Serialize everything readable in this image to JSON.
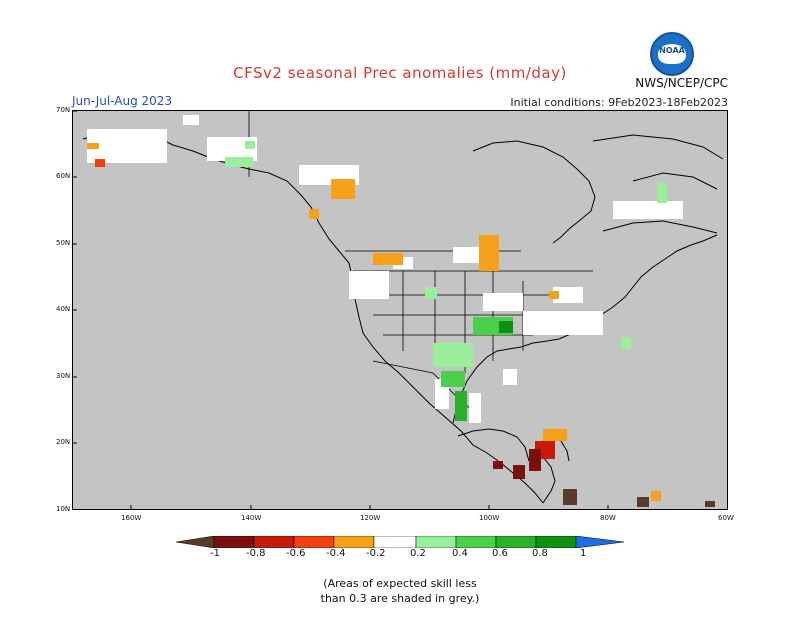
{
  "header": {
    "title": "CFSv2 seasonal Prec anomalies (mm/day)",
    "season": "Jun-Jul-Aug 2023",
    "initial_conditions": "Initial conditions: 9Feb2023-18Feb2023",
    "agency": "NWS/NCEP/CPC",
    "logo_text": "NOAA"
  },
  "axes": {
    "lat_labels": [
      "70N",
      "60N",
      "50N",
      "40N",
      "30N",
      "20N",
      "10N"
    ],
    "lon_labels": [
      "160W",
      "140W",
      "120W",
      "100W",
      "80W",
      "60W"
    ]
  },
  "colorbar": {
    "labels": [
      "-1",
      "-0.8",
      "-0.6",
      "-0.4",
      "-0.2",
      "0.2",
      "0.4",
      "0.6",
      "0.8",
      "1"
    ],
    "colors": [
      "#5a3a2a",
      "#7a1010",
      "#c81a0a",
      "#f04010",
      "#f5a21a",
      "#ffffff",
      "#9af09a",
      "#4ad04a",
      "#2ab02a",
      "#109010",
      "#1f6ee8"
    ]
  },
  "footnote": {
    "line1": "(Areas of expected skill less",
    "line2": "than 0.3 are shaded in grey.)"
  }
}
